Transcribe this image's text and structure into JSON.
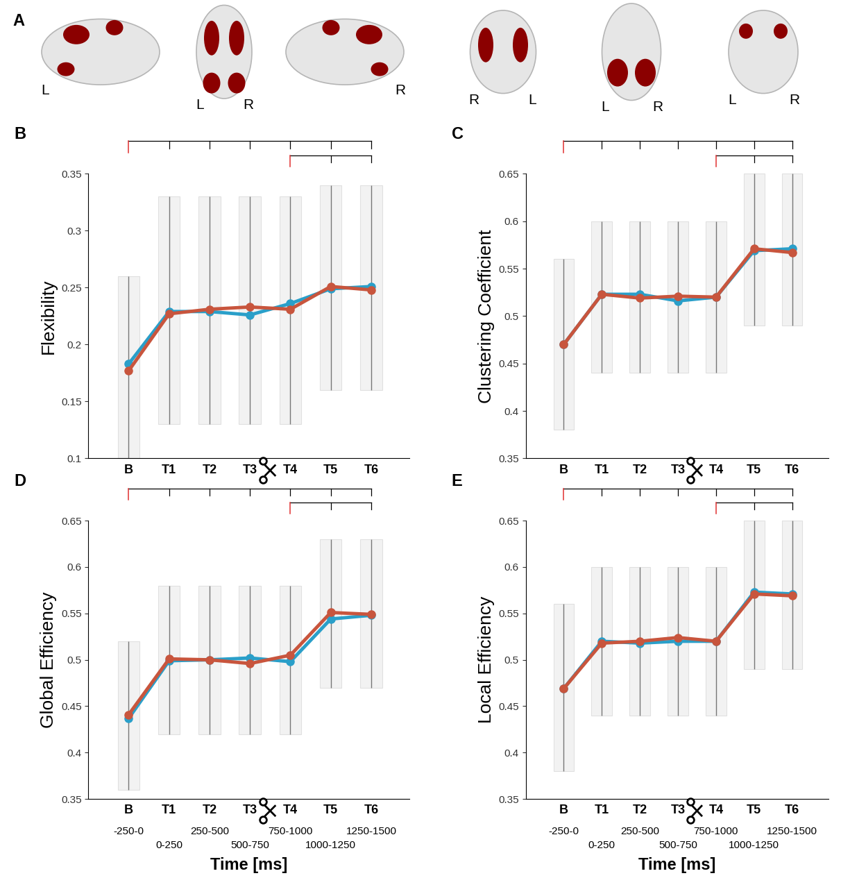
{
  "panel_a": {
    "label": "A",
    "views": [
      [
        "L"
      ],
      [
        "L",
        "R"
      ],
      [
        "R"
      ],
      [
        "R",
        "L"
      ],
      [
        "L",
        "R"
      ],
      [
        "L",
        "R"
      ]
    ]
  },
  "chart_data": [
    {
      "panel": "B",
      "type": "line",
      "ylabel": "Flexibility",
      "categories": [
        "B",
        "T1",
        "T2",
        "T3",
        "T4",
        "T5",
        "T6"
      ],
      "ylim": [
        0.1,
        0.35
      ],
      "yticks": [
        0.1,
        0.15,
        0.2,
        0.25,
        0.3,
        0.35
      ],
      "series": [
        {
          "color": "#2a9fc9",
          "marker": "o",
          "values": [
            0.183,
            0.229,
            0.229,
            0.226,
            0.236,
            0.249,
            0.251
          ]
        },
        {
          "color": "#c8553d",
          "marker": "o",
          "values": [
            0.177,
            0.227,
            0.231,
            0.233,
            0.231,
            0.251,
            0.248
          ]
        }
      ],
      "ranges": {
        "low": [
          0.1,
          0.13,
          0.13,
          0.13,
          0.13,
          0.16,
          0.16
        ],
        "high": [
          0.26,
          0.33,
          0.33,
          0.33,
          0.33,
          0.34,
          0.34
        ]
      },
      "comparisons": [
        {
          "from": "B",
          "to": [
            "T1",
            "T2",
            "T3",
            "T4",
            "T5",
            "T6"
          ]
        },
        {
          "from": "T4",
          "to": [
            "T5",
            "T6"
          ]
        }
      ]
    },
    {
      "panel": "C",
      "type": "line",
      "ylabel": "Clustering Coefficient",
      "categories": [
        "B",
        "T1",
        "T2",
        "T3",
        "T4",
        "T5",
        "T6"
      ],
      "ylim": [
        0.35,
        0.65
      ],
      "yticks": [
        0.35,
        0.4,
        0.45,
        0.5,
        0.55,
        0.6,
        0.65
      ],
      "series": [
        {
          "color": "#2a9fc9",
          "marker": "o",
          "values": [
            0.47,
            0.523,
            0.523,
            0.516,
            0.52,
            0.569,
            0.571
          ]
        },
        {
          "color": "#c8553d",
          "marker": "o",
          "values": [
            0.47,
            0.523,
            0.519,
            0.521,
            0.52,
            0.571,
            0.567
          ]
        }
      ],
      "ranges": {
        "low": [
          0.38,
          0.44,
          0.44,
          0.44,
          0.44,
          0.49,
          0.49
        ],
        "high": [
          0.56,
          0.6,
          0.6,
          0.6,
          0.6,
          0.65,
          0.65
        ]
      },
      "comparisons": [
        {
          "from": "B",
          "to": [
            "T1",
            "T2",
            "T3",
            "T4",
            "T5",
            "T6"
          ]
        },
        {
          "from": "T4",
          "to": [
            "T5",
            "T6"
          ]
        }
      ]
    },
    {
      "panel": "D",
      "type": "line",
      "ylabel": "Global Efficiency",
      "xlabel": "Time [ms]",
      "categories": [
        "B",
        "T1",
        "T2",
        "T3",
        "T4",
        "T5",
        "T6"
      ],
      "time_ranges": [
        "-250-0",
        "0-250",
        "250-500",
        "500-750",
        "750-1000",
        "1000-1250",
        "1250-1500"
      ],
      "ylim": [
        0.35,
        0.65
      ],
      "yticks": [
        0.35,
        0.4,
        0.45,
        0.5,
        0.55,
        0.6,
        0.65
      ],
      "series": [
        {
          "color": "#2a9fc9",
          "marker": "o",
          "values": [
            0.437,
            0.499,
            0.5,
            0.502,
            0.498,
            0.544,
            0.548
          ]
        },
        {
          "color": "#c8553d",
          "marker": "o",
          "values": [
            0.441,
            0.501,
            0.5,
            0.496,
            0.505,
            0.551,
            0.549
          ]
        }
      ],
      "ranges": {
        "low": [
          0.36,
          0.42,
          0.42,
          0.42,
          0.42,
          0.47,
          0.47
        ],
        "high": [
          0.52,
          0.58,
          0.58,
          0.58,
          0.58,
          0.63,
          0.63
        ]
      },
      "comparisons": [
        {
          "from": "B",
          "to": [
            "T1",
            "T2",
            "T3",
            "T4",
            "T5",
            "T6"
          ]
        },
        {
          "from": "T4",
          "to": [
            "T5",
            "T6"
          ]
        }
      ]
    },
    {
      "panel": "E",
      "type": "line",
      "ylabel": "Local Efficiency",
      "xlabel": "Time [ms]",
      "categories": [
        "B",
        "T1",
        "T2",
        "T3",
        "T4",
        "T5",
        "T6"
      ],
      "time_ranges": [
        "-250-0",
        "0-250",
        "250-500",
        "500-750",
        "750-1000",
        "1000-1250",
        "1250-1500"
      ],
      "ylim": [
        0.35,
        0.65
      ],
      "yticks": [
        0.35,
        0.4,
        0.45,
        0.5,
        0.55,
        0.6,
        0.65
      ],
      "series": [
        {
          "color": "#2a9fc9",
          "marker": "o",
          "values": [
            0.469,
            0.52,
            0.518,
            0.52,
            0.52,
            0.573,
            0.571
          ]
        },
        {
          "color": "#c8553d",
          "marker": "o",
          "values": [
            0.469,
            0.518,
            0.52,
            0.524,
            0.52,
            0.571,
            0.569
          ]
        }
      ],
      "ranges": {
        "low": [
          0.38,
          0.44,
          0.44,
          0.44,
          0.44,
          0.49,
          0.49
        ],
        "high": [
          0.56,
          0.6,
          0.6,
          0.6,
          0.6,
          0.65,
          0.65
        ]
      },
      "comparisons": [
        {
          "from": "B",
          "to": [
            "T1",
            "T2",
            "T3",
            "T4",
            "T5",
            "T6"
          ]
        },
        {
          "from": "T4",
          "to": [
            "T5",
            "T6"
          ]
        }
      ]
    }
  ]
}
